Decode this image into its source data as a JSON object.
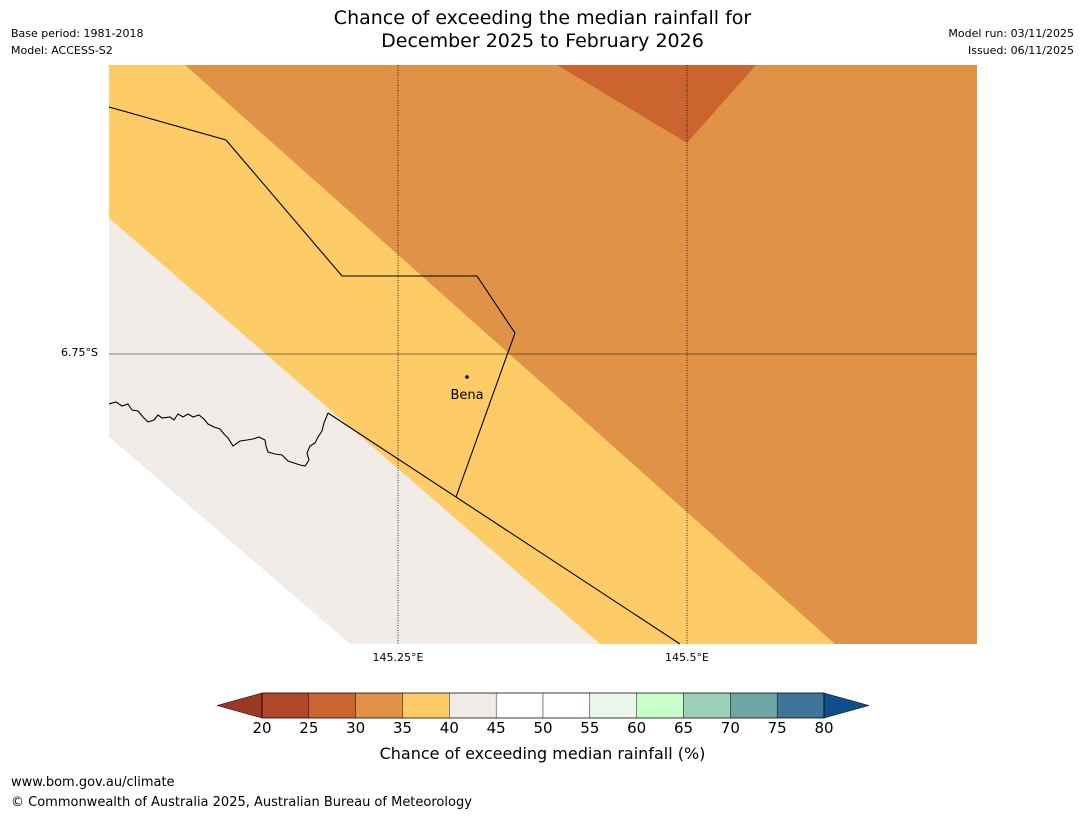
{
  "header": {
    "title_line1": "Chance of exceeding the median rainfall for",
    "title_line2": "December 2025 to February 2026",
    "base_period": "Base period: 1981-2018",
    "model": "Model: ACCESS-S2",
    "model_run": "Model run: 03/11/2025",
    "issued": "Issued: 06/11/2025"
  },
  "map": {
    "latitude_label": "6.75°S",
    "longitude_labels": [
      "145.25°E",
      "145.5°E"
    ],
    "place": {
      "name": "Bena"
    },
    "colors": {
      "band_20_25": "#b1482a",
      "band_25_30": "#cc6430",
      "band_30_35": "#e09346",
      "band_35_40": "#fdcc67",
      "band_40_45": "#f1ece7",
      "background": "#ffffff",
      "boundary": "#000000",
      "gridline": "#000000"
    }
  },
  "colorbar": {
    "ticks": [
      "20",
      "25",
      "30",
      "35",
      "40",
      "45",
      "50",
      "55",
      "60",
      "65",
      "70",
      "75",
      "80"
    ],
    "colors": [
      "#b1482a",
      "#cc6430",
      "#e09346",
      "#fdcc67",
      "#f1ece7",
      "#ffffff",
      "#ffffff",
      "#eaf6e9",
      "#c8fec9",
      "#9cd0b8",
      "#6ea5a5",
      "#3f7599"
    ],
    "under_color": "#9b3824",
    "over_color": "#0f4f8c",
    "label": "Chance of exceeding median rainfall (%)"
  },
  "footer": {
    "url": "www.bom.gov.au/climate",
    "copyright": "© Commonwealth of Australia 2025, Australian Bureau of Meteorology"
  }
}
